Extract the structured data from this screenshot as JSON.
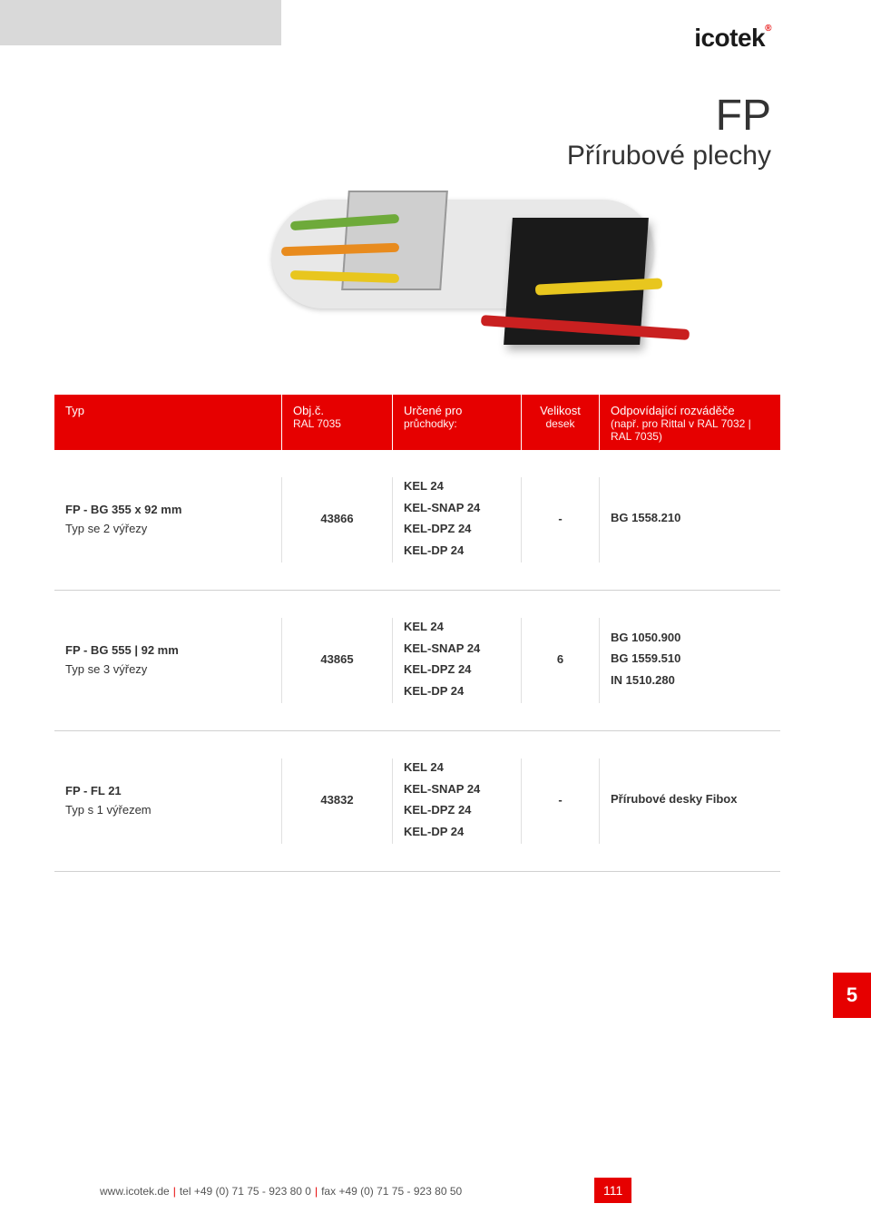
{
  "brand": "icotek",
  "title": {
    "fp": "FP",
    "sub": "Přírubové plechy"
  },
  "header": {
    "typ": {
      "l1": "Typ",
      "l2": ""
    },
    "obj": {
      "l1": "Obj.č.",
      "l2": "RAL 7035"
    },
    "urc": {
      "l1": "Určené pro",
      "l2": "průchodky:"
    },
    "vel": {
      "l1": "Velikost",
      "l2": "desek"
    },
    "roz": {
      "l1": "Odpovídající rozváděče",
      "l2": "(např. pro Rittal v RAL 7032 | RAL 7035)"
    }
  },
  "rows": [
    {
      "typ_title": "FP - BG 355 x 92 mm",
      "typ_sub": "Typ se 2 výřezy",
      "obj": "43866",
      "urc": [
        "KEL 24",
        "KEL-SNAP 24",
        "KEL-DPZ 24",
        "KEL-DP 24"
      ],
      "vel": "-",
      "roz": [
        "BG 1558.210"
      ]
    },
    {
      "typ_title": "FP - BG 555 | 92 mm",
      "typ_sub": "Typ se 3 výřezy",
      "obj": "43865",
      "urc": [
        "KEL 24",
        "KEL-SNAP 24",
        "KEL-DPZ 24",
        "KEL-DP 24"
      ],
      "vel": "6",
      "roz": [
        "BG 1050.900",
        "BG 1559.510",
        "IN 1510.280"
      ]
    },
    {
      "typ_title": "FP - FL 21",
      "typ_sub": "Typ s 1 výřezem",
      "obj": "43832",
      "urc": [
        "KEL 24",
        "KEL-SNAP 24",
        "KEL-DPZ 24",
        "KEL-DP 24"
      ],
      "vel": "-",
      "roz": [
        "Přírubové desky Fibox"
      ]
    }
  ],
  "side_tab": "5",
  "footer": {
    "site": "www.icotek.de",
    "tel_label": "tel",
    "tel": "+49 (0) 71 75 - 923 80 0",
    "fax_label": "fax",
    "fax": "+49 (0) 71 75 - 923 80 50"
  },
  "page_num": "111",
  "colors": {
    "accent": "#e60000",
    "grey_bar": "#d9d9d9",
    "row_border": "#d0d0d0",
    "text": "#333333",
    "background": "#ffffff"
  }
}
